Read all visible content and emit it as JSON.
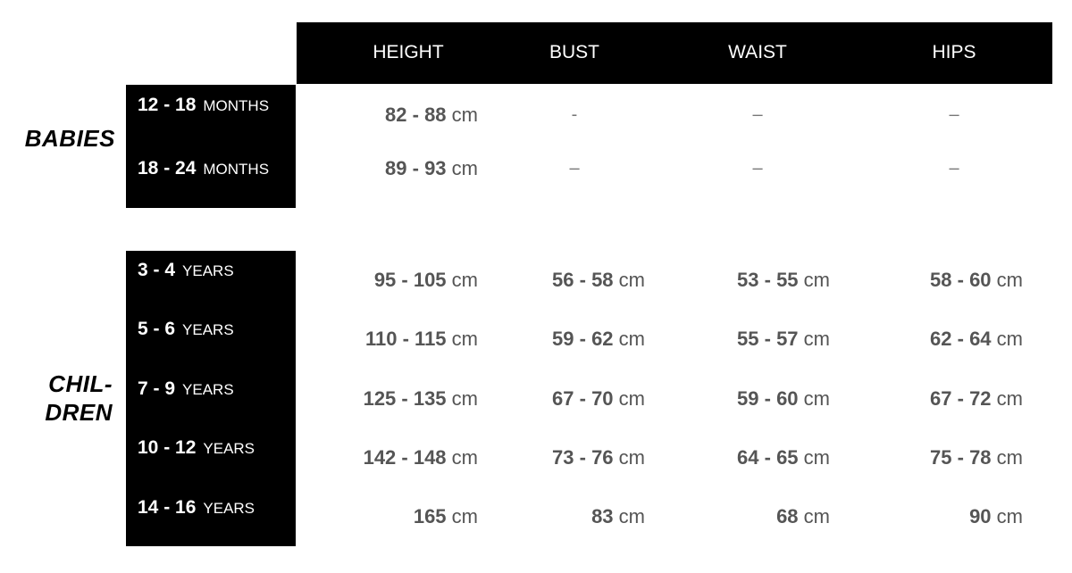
{
  "header": {
    "columns": [
      "HEIGHT",
      "BUST",
      "WAIST",
      "HIPS"
    ]
  },
  "babies": {
    "label": "BABIES",
    "rows": [
      {
        "range": "12 - 18",
        "unit": "MONTHS",
        "height": "82 - 88",
        "bust": "-",
        "waist": "–",
        "hips": "–"
      },
      {
        "range": "18 - 24",
        "unit": "MONTHS",
        "height": "89 - 93",
        "bust": "–",
        "waist": "–",
        "hips": "–"
      }
    ]
  },
  "children": {
    "label_line1": "CHIL-",
    "label_line2": "DREN",
    "rows": [
      {
        "range": "3 - 4",
        "unit": "YEARS",
        "height": "95 - 105",
        "bust": "56 - 58",
        "waist": "53 - 55",
        "hips": "58 - 60"
      },
      {
        "range": "5 - 6",
        "unit": "YEARS",
        "height": "110 - 115",
        "bust": "59 - 62",
        "waist": "55 - 57",
        "hips": "62 - 64"
      },
      {
        "range": "7 - 9",
        "unit": "YEARS",
        "height": "125 - 135",
        "bust": "67 - 70",
        "waist": "59 - 60",
        "hips": "67 - 72"
      },
      {
        "range": "10 - 12",
        "unit": "YEARS",
        "height": "142 - 148",
        "bust": "73 - 76",
        "waist": "64 - 65",
        "hips": "75 - 78"
      },
      {
        "range": "14 - 16",
        "unit": "YEARS",
        "height": "165",
        "bust": "83",
        "waist": "68",
        "hips": "90"
      }
    ]
  },
  "unit": "cm"
}
